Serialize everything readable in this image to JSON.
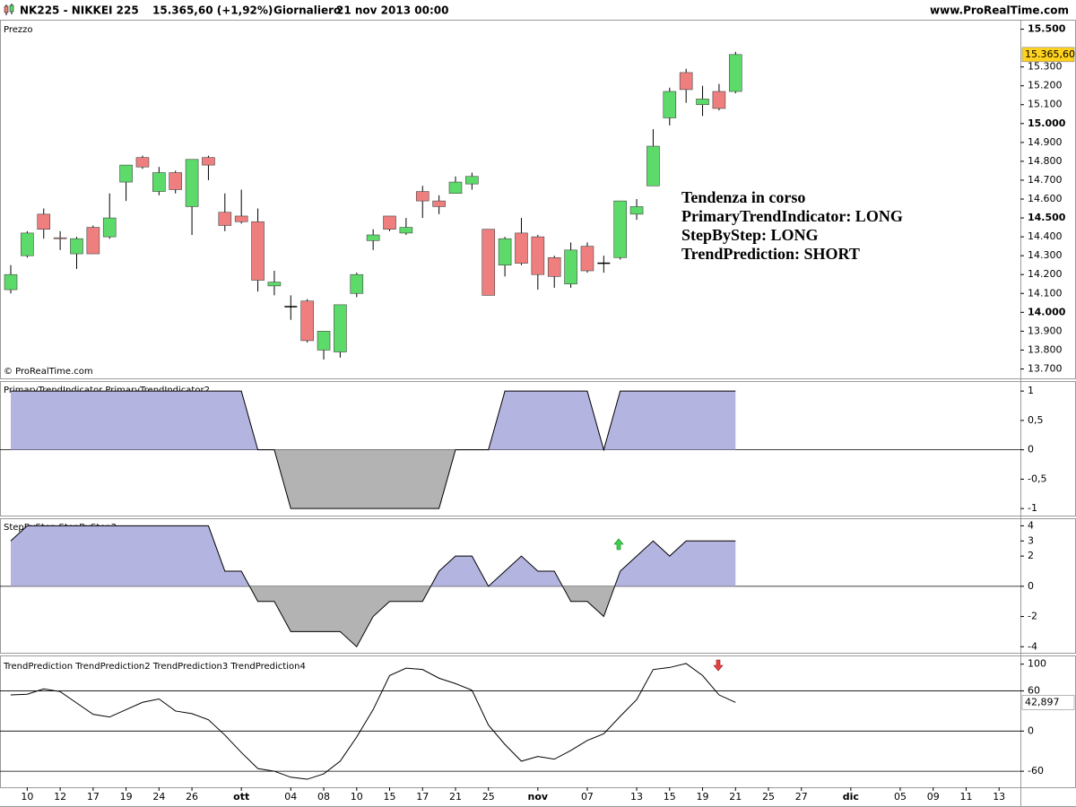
{
  "header": {
    "symbol": "NK225 - NIKKEI 225",
    "quote": "15.365,60 (+1,92%)",
    "period": "Giornaliero",
    "datetime": "21 nov 2013 00:00",
    "site": "www.ProRealTime.com"
  },
  "copyright": "© ProRealTime.com",
  "annotation": [
    "Tendenza in corso",
    "PrimaryTrendIndicator: LONG",
    "StepByStep: LONG",
    "TrendPrediction: SHORT"
  ],
  "chart_data": [
    {
      "type": "candlestick",
      "title": "Prezzo",
      "categories": [
        null,
        "10",
        null,
        "12",
        null,
        "17",
        null,
        "19",
        null,
        "24",
        null,
        "26",
        null,
        null,
        "ott",
        null,
        null,
        "04",
        null,
        "08",
        null,
        "10",
        null,
        "15",
        null,
        "17",
        null,
        "21",
        null,
        "25",
        null,
        null,
        "nov",
        null,
        null,
        "07",
        null,
        null,
        "13",
        null,
        "15",
        null,
        "19",
        null,
        "21",
        null,
        "25",
        null,
        "27",
        null,
        null,
        "dic",
        null,
        null,
        "05",
        null,
        "09",
        null,
        "11",
        null,
        "13"
      ],
      "open": [
        14120,
        14300,
        14520,
        14395,
        14310,
        14450,
        14400,
        14690,
        14820,
        14640,
        14740,
        14560,
        14820,
        14530,
        14510,
        14480,
        14140,
        14030,
        14060,
        13800,
        13790,
        14100,
        14380,
        14510,
        14420,
        14640,
        14590,
        14630,
        14680,
        14440,
        14250,
        14420,
        14400,
        14290,
        14150,
        14350,
        14260,
        14290,
        14520,
        14670,
        15030,
        15270,
        15100,
        15170,
        15170,
        null,
        null,
        null,
        null,
        null,
        null,
        null,
        null,
        null,
        null,
        null,
        null,
        null,
        null,
        null,
        null
      ],
      "high": [
        14250,
        14430,
        14550,
        14430,
        14400,
        14460,
        14630,
        14780,
        14830,
        14770,
        14750,
        14810,
        14830,
        14630,
        14650,
        14550,
        14220,
        14090,
        14070,
        13900,
        14040,
        14210,
        14440,
        14510,
        14500,
        14670,
        14620,
        14720,
        14740,
        14440,
        14400,
        14500,
        14410,
        14300,
        14370,
        14370,
        14300,
        14590,
        14600,
        14970,
        15190,
        15290,
        15200,
        15210,
        15380,
        null,
        null,
        null,
        null,
        null,
        null,
        null,
        null,
        null,
        null,
        null,
        null,
        null,
        null,
        null,
        null
      ],
      "low": [
        14100,
        14290,
        14390,
        14330,
        14230,
        14310,
        14390,
        14590,
        14760,
        14620,
        14630,
        14410,
        14700,
        14430,
        14470,
        14110,
        14090,
        13960,
        13840,
        13750,
        13760,
        14080,
        14330,
        14430,
        14410,
        14500,
        14520,
        14630,
        14650,
        14090,
        14190,
        14250,
        14120,
        14130,
        14130,
        14210,
        14210,
        14280,
        14490,
        14670,
        14990,
        15110,
        15040,
        15070,
        15160,
        null,
        null,
        null,
        null,
        null,
        null,
        null,
        null,
        null,
        null,
        null,
        null,
        null,
        null,
        null,
        null
      ],
      "close": [
        14200,
        14420,
        14440,
        14390,
        14390,
        14310,
        14500,
        14780,
        14770,
        14740,
        14650,
        14810,
        14780,
        14460,
        14480,
        14170,
        14160,
        14030,
        13850,
        13900,
        14040,
        14200,
        14410,
        14440,
        14450,
        14590,
        14560,
        14690,
        14720,
        14090,
        14390,
        14260,
        14200,
        14190,
        14330,
        14220,
        14260,
        14590,
        14560,
        14880,
        15170,
        15180,
        15130,
        15080,
        15365.6,
        null,
        null,
        null,
        null,
        null,
        null,
        null,
        null,
        null,
        null,
        null,
        null,
        null,
        null,
        null,
        null
      ],
      "up_color": "#5ddb6a",
      "down_color": "#ef7f7f",
      "doji_color": "#000000",
      "ylim": [
        13650,
        15550
      ],
      "major_tick_step": 500,
      "yticks": [
        {
          "value": 15500,
          "label": "15.500"
        },
        {
          "value": 15300,
          "label": "15.300"
        },
        {
          "value": 15200,
          "label": "15.200"
        },
        {
          "value": 15100,
          "label": "15.100"
        },
        {
          "value": 15000,
          "label": "15.000"
        },
        {
          "value": 14900,
          "label": "14.900"
        },
        {
          "value": 14800,
          "label": "14.800"
        },
        {
          "value": 14700,
          "label": "14.700"
        },
        {
          "value": 14600,
          "label": "14.600"
        },
        {
          "value": 14500,
          "label": "14.500"
        },
        {
          "value": 14400,
          "label": "14.400"
        },
        {
          "value": 14300,
          "label": "14.300"
        },
        {
          "value": 14200,
          "label": "14.200"
        },
        {
          "value": 14100,
          "label": "14.100"
        },
        {
          "value": 14000,
          "label": "14.000"
        },
        {
          "value": 13900,
          "label": "13.900"
        },
        {
          "value": 13800,
          "label": "13.800"
        },
        {
          "value": 13700,
          "label": "13.700"
        }
      ],
      "last_value": 15365.6,
      "last_value_label": "15.365,60",
      "badge_color": "#ffd21f"
    },
    {
      "type": "area",
      "title": "PrimaryTrendIndicator PrimaryTrendIndicator2",
      "values": [
        1,
        1,
        1,
        1,
        1,
        1,
        1,
        1,
        1,
        1,
        1,
        1,
        1,
        1,
        1,
        0,
        0,
        -1,
        -1,
        -1,
        -1,
        -1,
        -1,
        -1,
        -1,
        -1,
        -1,
        0,
        0,
        0,
        1,
        1,
        1,
        1,
        1,
        1,
        0,
        1,
        1,
        1,
        1,
        1,
        1,
        1,
        1,
        null,
        null,
        null,
        null,
        null,
        null,
        null,
        null,
        null,
        null,
        null,
        null,
        null,
        null,
        null,
        null
      ],
      "positive_color": "#b4b4e1",
      "negative_color": "#b3b3b3",
      "ylim": [
        -1.12,
        1.17
      ],
      "yticks": [
        1,
        {
          "value": 0.5,
          "label": "0,5"
        },
        0,
        {
          "value": -0.5,
          "label": "-0,5"
        },
        -1
      ],
      "hlines": [
        0
      ]
    },
    {
      "type": "area",
      "title": "StepByStep StepByStep2",
      "values": [
        3,
        4,
        4,
        4,
        4,
        4,
        4,
        4,
        4,
        4,
        4,
        4,
        4,
        1,
        1,
        -1,
        -1,
        -3,
        -3,
        -3,
        -3,
        -4,
        -2,
        -1,
        -1,
        -1,
        1,
        2,
        2,
        0,
        1,
        2,
        1,
        1,
        -1,
        -1,
        -2,
        1,
        2,
        3,
        2,
        3,
        3,
        3,
        3,
        null,
        null,
        null,
        null,
        null,
        null,
        null,
        null,
        null,
        null,
        null,
        null,
        null,
        null,
        null,
        null
      ],
      "positive_color": "#b4b4e1",
      "negative_color": "#b3b3b3",
      "ylim": [
        -4.4,
        4.5
      ],
      "yticks": [
        4,
        3,
        2,
        0,
        -2,
        -4
      ],
      "hlines": [
        0
      ]
    },
    {
      "type": "line",
      "title": "TrendPrediction TrendPrediction2 TrendPrediction3 TrendPrediction4",
      "values": [
        54,
        55,
        63,
        59,
        42,
        25,
        21,
        32,
        43,
        48,
        30,
        26,
        17,
        -6,
        -32,
        -56,
        -60,
        -69,
        -72,
        -64,
        -45,
        -9,
        32,
        83,
        94,
        92,
        79,
        71,
        61,
        9,
        -20,
        -45,
        -38,
        -42,
        -29,
        -14,
        -4,
        22,
        47,
        92,
        95,
        101,
        83,
        54,
        42.897,
        null,
        null,
        null,
        null,
        null,
        null,
        null,
        null,
        null,
        null,
        null,
        null,
        null,
        null,
        null,
        null
      ],
      "color": "#000000",
      "ylim": [
        -84,
        113
      ],
      "yticks": [
        100,
        60,
        0,
        -60
      ],
      "hlines": [
        60,
        0,
        -60
      ],
      "last_value": 42.897,
      "last_value_label": "42,897",
      "badge_color": "#ffffff"
    }
  ]
}
